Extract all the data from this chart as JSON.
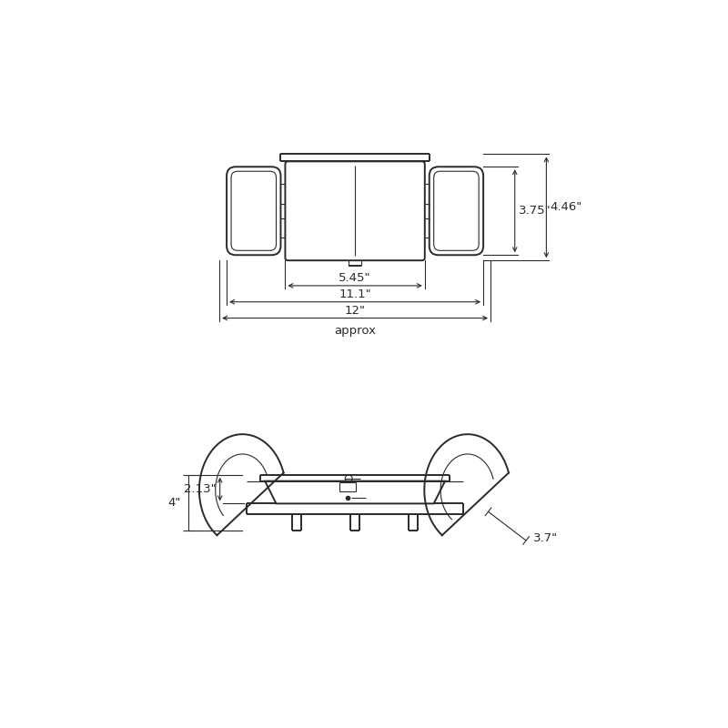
{
  "bg_color": "#ffffff",
  "line_color": "#2a2a2a",
  "dim_color": "#2a2a2a",
  "font_size_dim": 9.5,
  "dimensions": {
    "w_375": "3.75\"",
    "w_446": "4.46\"",
    "w_545": "5.45\"",
    "w_111": "11.1\"",
    "w_12": "12\"",
    "approx": "approx",
    "h_4": "4\"",
    "h_213": "2.13\"",
    "d_37": "3.7\""
  }
}
